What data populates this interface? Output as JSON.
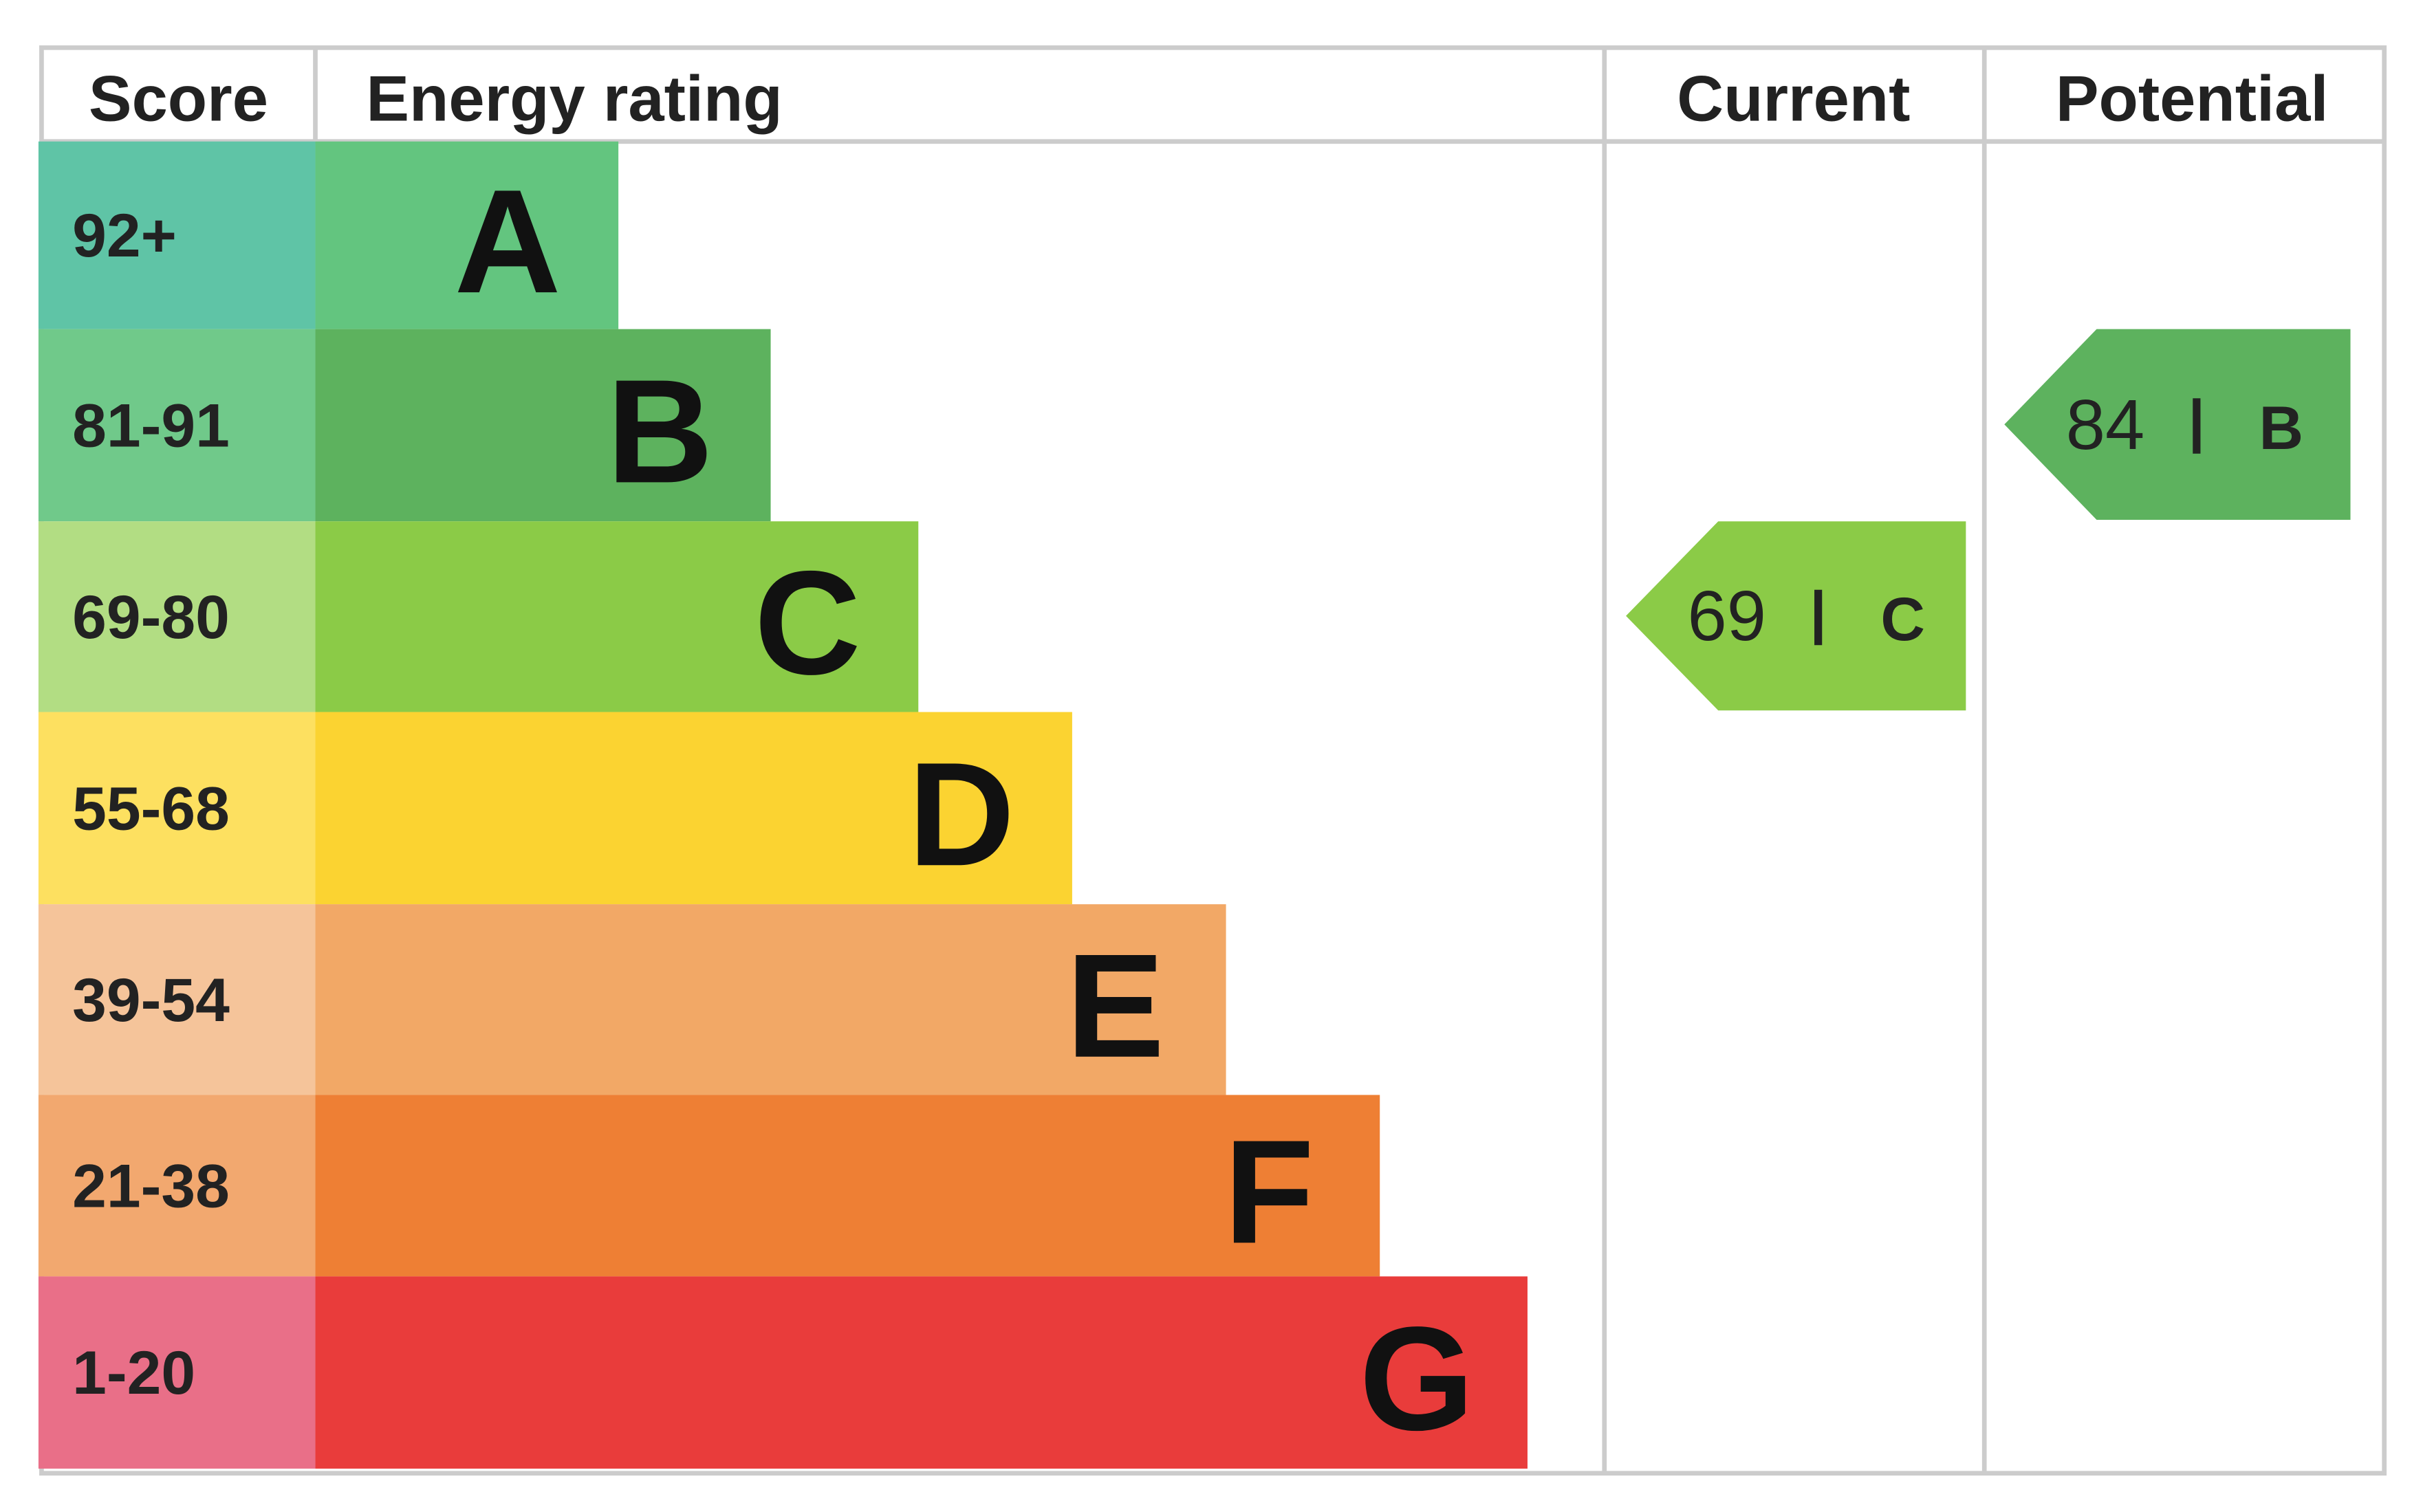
{
  "header": {
    "score": "Score",
    "energy_rating": "Energy rating",
    "current": "Current",
    "potential": "Potential"
  },
  "bands": [
    {
      "score": "92+",
      "rating": "A",
      "color": "#63c57f",
      "score_color": "#5fc4a6"
    },
    {
      "score": "81-91",
      "rating": "B",
      "color": "#5db25e",
      "score_color": "#70c98a"
    },
    {
      "score": "69-80",
      "rating": "C",
      "color": "#8bcb47",
      "score_color": "#b2dd83"
    },
    {
      "score": "55-68",
      "rating": "D",
      "color": "#fbd331",
      "score_color": "#fde060"
    },
    {
      "score": "39-54",
      "rating": "E",
      "color": "#f2a866",
      "score_color": "#f5c49a"
    },
    {
      "score": "21-38",
      "rating": "F",
      "color": "#ee7f34",
      "score_color": "#f2a86f"
    },
    {
      "score": "1-20",
      "rating": "G",
      "color": "#e93c3b",
      "score_color": "#e96f88"
    }
  ],
  "current": {
    "score": 69,
    "rating": "C"
  },
  "potential": {
    "score": 84,
    "rating": "B"
  }
}
